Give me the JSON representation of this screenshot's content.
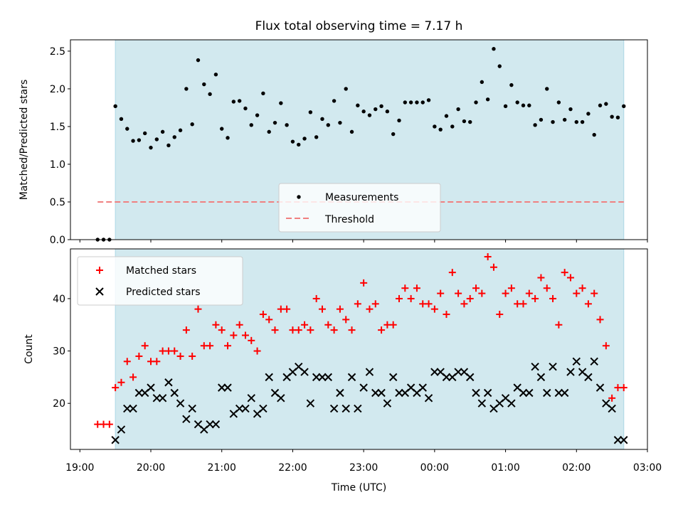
{
  "colors": {
    "shade": "#d2e9ef",
    "threshold": "#f08080",
    "matched": "#ff0000",
    "predicted": "#000000",
    "measurement": "#000000"
  },
  "chart_data": [
    {
      "type": "scatter",
      "title": "Flux total observing time = 7.17 h",
      "xlabel": "",
      "ylabel": "Matched/Predicted stars",
      "ylim": [
        0,
        2.65
      ],
      "y_ticks": [
        "0.0",
        "0.5",
        "1.0",
        "1.5",
        "2.0",
        "2.5"
      ],
      "x_tick_labels_shown": false,
      "shaded_range": [
        "19:30",
        "02:40"
      ],
      "threshold": {
        "name": "Threshold",
        "value": 0.5,
        "x_start": "19:15",
        "x_end": "02:40",
        "style": "dashed"
      },
      "legend": {
        "placement": "lower-center",
        "entries": [
          "Measurements",
          "Threshold"
        ]
      },
      "series": [
        {
          "name": "Measurements",
          "marker": "dot",
          "x": [
            "19:15",
            "19:20",
            "19:25",
            "19:30",
            "19:35",
            "19:40",
            "19:45",
            "19:50",
            "19:55",
            "20:00",
            "20:05",
            "20:10",
            "20:15",
            "20:20",
            "20:25",
            "20:30",
            "20:35",
            "20:40",
            "20:45",
            "20:50",
            "20:55",
            "21:00",
            "21:05",
            "21:10",
            "21:15",
            "21:20",
            "21:25",
            "21:30",
            "21:35",
            "21:40",
            "21:45",
            "21:50",
            "21:55",
            "22:00",
            "22:05",
            "22:10",
            "22:15",
            "22:20",
            "22:25",
            "22:30",
            "22:35",
            "22:40",
            "22:45",
            "22:50",
            "22:55",
            "23:00",
            "23:05",
            "23:10",
            "23:15",
            "23:20",
            "23:25",
            "23:30",
            "23:35",
            "23:40",
            "23:45",
            "23:50",
            "23:55",
            "00:00",
            "00:05",
            "00:10",
            "00:15",
            "00:20",
            "00:25",
            "00:30",
            "00:35",
            "00:40",
            "00:45",
            "00:50",
            "00:55",
            "01:00",
            "01:05",
            "01:10",
            "01:15",
            "01:20",
            "01:25",
            "01:30",
            "01:35",
            "01:40",
            "01:45",
            "01:50",
            "01:55",
            "02:00",
            "02:05",
            "02:10",
            "02:15",
            "02:20",
            "02:25",
            "02:30",
            "02:35",
            "02:40"
          ],
          "y": [
            0,
            0,
            0,
            1.77,
            1.6,
            1.47,
            1.31,
            1.32,
            1.41,
            1.22,
            1.33,
            1.43,
            1.25,
            1.36,
            1.45,
            2.0,
            1.53,
            2.38,
            2.06,
            1.93,
            2.19,
            1.47,
            1.35,
            1.83,
            1.84,
            1.74,
            1.52,
            1.65,
            1.94,
            1.43,
            1.55,
            1.81,
            1.52,
            1.3,
            1.26,
            1.34,
            1.69,
            1.36,
            1.6,
            1.52,
            1.84,
            1.55,
            2.0,
            1.43,
            1.78,
            1.7,
            1.65,
            1.73,
            1.77,
            1.7,
            1.4,
            1.58,
            1.82,
            1.82,
            1.82,
            1.82,
            1.85,
            1.5,
            1.46,
            1.64,
            1.5,
            1.73,
            1.57,
            1.56,
            1.82,
            2.09,
            1.86,
            2.53,
            2.3,
            1.77,
            2.05,
            1.82,
            1.78,
            1.78,
            1.52,
            1.59,
            2.0,
            1.56,
            1.82,
            1.59,
            1.73,
            1.56,
            1.56,
            1.67,
            1.39,
            1.78,
            1.8,
            1.63,
            1.62,
            1.77
          ]
        }
      ]
    },
    {
      "type": "scatter",
      "title": "",
      "xlabel": "Time (UTC)",
      "ylabel": "Count",
      "ylim": [
        11.2,
        49.5
      ],
      "y_ticks": [
        "20",
        "30",
        "40"
      ],
      "x_ticks": [
        "19:00",
        "20:00",
        "21:00",
        "22:00",
        "23:00",
        "00:00",
        "01:00",
        "02:00",
        "03:00"
      ],
      "xlim": [
        "18:52",
        "03:00"
      ],
      "shaded_range": [
        "19:30",
        "02:40"
      ],
      "legend": {
        "placement": "upper-left",
        "entries": [
          "Matched stars",
          "Predicted stars"
        ]
      },
      "x": [
        "19:15",
        "19:20",
        "19:25",
        "19:30",
        "19:35",
        "19:40",
        "19:45",
        "19:50",
        "19:55",
        "20:00",
        "20:05",
        "20:10",
        "20:15",
        "20:20",
        "20:25",
        "20:30",
        "20:35",
        "20:40",
        "20:45",
        "20:50",
        "20:55",
        "21:00",
        "21:05",
        "21:10",
        "21:15",
        "21:20",
        "21:25",
        "21:30",
        "21:35",
        "21:40",
        "21:45",
        "21:50",
        "21:55",
        "22:00",
        "22:05",
        "22:10",
        "22:15",
        "22:20",
        "22:25",
        "22:30",
        "22:35",
        "22:40",
        "22:45",
        "22:50",
        "22:55",
        "23:00",
        "23:05",
        "23:10",
        "23:15",
        "23:20",
        "23:25",
        "23:30",
        "23:35",
        "23:40",
        "23:45",
        "23:50",
        "23:55",
        "00:00",
        "00:05",
        "00:10",
        "00:15",
        "00:20",
        "00:25",
        "00:30",
        "00:35",
        "00:40",
        "00:45",
        "00:50",
        "00:55",
        "01:00",
        "01:05",
        "01:10",
        "01:15",
        "01:20",
        "01:25",
        "01:30",
        "01:35",
        "01:40",
        "01:45",
        "01:50",
        "01:55",
        "02:00",
        "02:05",
        "02:10",
        "02:15",
        "02:20",
        "02:25",
        "02:30",
        "02:35",
        "02:40"
      ],
      "series": [
        {
          "name": "Matched stars",
          "marker": "plus",
          "values": [
            16,
            16,
            16,
            23,
            24,
            28,
            25,
            29,
            31,
            28,
            28,
            30,
            30,
            30,
            29,
            34,
            29,
            38,
            31,
            31,
            35,
            34,
            31,
            33,
            35,
            33,
            32,
            30,
            37,
            36,
            34,
            38,
            38,
            34,
            34,
            35,
            34,
            40,
            38,
            35,
            34,
            38,
            36,
            34,
            39,
            43,
            38,
            39,
            34,
            35,
            35,
            40,
            42,
            40,
            42,
            39,
            39,
            38,
            41,
            37,
            45,
            41,
            39,
            40,
            42,
            41,
            48,
            46,
            37,
            41,
            42,
            39,
            39,
            41,
            40,
            44,
            42,
            40,
            35,
            45,
            44,
            41,
            42,
            39,
            41,
            36,
            31,
            21,
            23,
            23
          ]
        },
        {
          "name": "Predicted stars",
          "marker": "x",
          "values": [
            null,
            null,
            null,
            13,
            15,
            19,
            19,
            22,
            22,
            23,
            21,
            21,
            24,
            22,
            20,
            17,
            19,
            16,
            15,
            16,
            16,
            23,
            23,
            18,
            19,
            19,
            21,
            18,
            19,
            25,
            22,
            21,
            25,
            26,
            27,
            26,
            20,
            25,
            25,
            25,
            19,
            22,
            19,
            25,
            19,
            23,
            26,
            22,
            22,
            20,
            25,
            22,
            22,
            23,
            22,
            23,
            21,
            26,
            26,
            25,
            25,
            26,
            26,
            25,
            22,
            20,
            22,
            19,
            20,
            21,
            20,
            23,
            22,
            22,
            27,
            25,
            22,
            27,
            22,
            22,
            26,
            28,
            26,
            25,
            28,
            23,
            20,
            19,
            13,
            13
          ]
        }
      ]
    }
  ]
}
